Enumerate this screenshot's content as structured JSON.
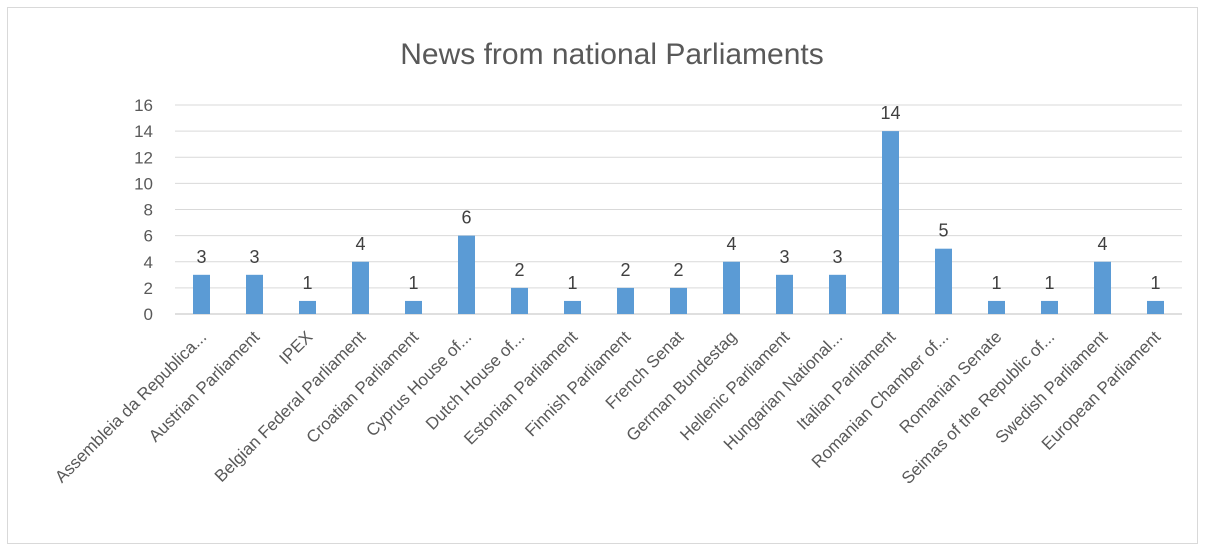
{
  "chart_data": {
    "type": "bar",
    "title": "News from national Parliaments",
    "xlabel": "",
    "ylabel": "",
    "ylim": [
      0,
      16
    ],
    "yticks": [
      0,
      2,
      4,
      6,
      8,
      10,
      12,
      14,
      16
    ],
    "grid": true,
    "legend": "none",
    "bar_color": "#5b9bd5",
    "data_labels": true,
    "categories": [
      "Assembleia da Republica...",
      "Austrian Parliament",
      "IPEX",
      "Belgian Federal Parliament",
      "Croatian Parliament",
      "Cyprus House of...",
      "Dutch House of...",
      "Estonian Parliament",
      "Finnish Parliament",
      "French Senat",
      "German Bundestag",
      "Hellenic Parliament",
      "Hungarian National...",
      "Italian Parliament",
      "Romanian Chamber of...",
      "Romanian Senate",
      "Seimas of the Republic of...",
      "Swedish Parliament",
      "European Parliament"
    ],
    "values": [
      3,
      3,
      1,
      4,
      1,
      6,
      2,
      1,
      2,
      2,
      4,
      3,
      3,
      14,
      5,
      1,
      1,
      4,
      1
    ]
  }
}
